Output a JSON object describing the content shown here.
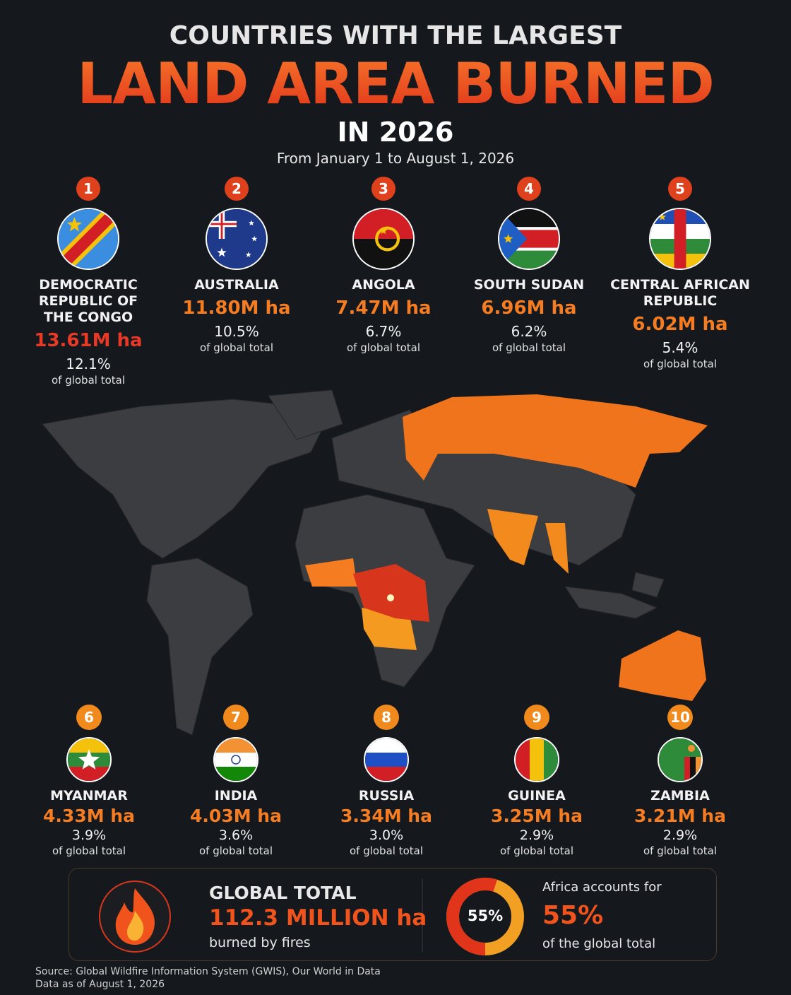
{
  "header": {
    "title_top": "COUNTRIES WITH THE LARGEST",
    "title_main": "LAND AREA BURNED",
    "title_year": "IN 2026",
    "subtitle": "From January 1 to August 1, 2026"
  },
  "countries": [
    {
      "rank": "1",
      "name": "DEMOCRATIC REPUBLIC OF THE CONGO",
      "area": "13.61M ha",
      "share": "12.1%",
      "share_note": "of global total"
    },
    {
      "rank": "2",
      "name": "AUSTRALIA",
      "area": "11.80M ha",
      "share": "10.5%",
      "share_note": "of global total"
    },
    {
      "rank": "3",
      "name": "ANGOLA",
      "area": "7.47M ha",
      "share": "6.7%",
      "share_note": "of global total"
    },
    {
      "rank": "4",
      "name": "SOUTH SUDAN",
      "area": "6.96M ha",
      "share": "6.2%",
      "share_note": "of global total"
    },
    {
      "rank": "5",
      "name": "CENTRAL AFRICAN REPUBLIC",
      "area": "6.02M ha",
      "share": "5.4%",
      "share_note": "of global total"
    },
    {
      "rank": "6",
      "name": "MYANMAR",
      "area": "4.33M ha",
      "share": "3.9%",
      "share_note": "of global total"
    },
    {
      "rank": "7",
      "name": "INDIA",
      "area": "4.03M ha",
      "share": "3.6%",
      "share_note": "of global total"
    },
    {
      "rank": "8",
      "name": "RUSSIA",
      "area": "3.34M ha",
      "share": "3.0%",
      "share_note": "of global total"
    },
    {
      "rank": "9",
      "name": "GUINEA",
      "area": "3.25M ha",
      "share": "2.9%",
      "share_note": "of global total"
    },
    {
      "rank": "10",
      "name": "ZAMBIA",
      "area": "3.21M ha",
      "share": "2.9%",
      "share_note": "of global total"
    }
  ],
  "summary": {
    "label": "GLOBAL TOTAL",
    "total": "112.3 MILLION ha",
    "note": "burned by fires",
    "donut_label": "55%",
    "share_value": 55,
    "africa_intro": "Africa accounts for",
    "africa_share": "55%",
    "africa_note": "of the global total"
  },
  "source": [
    "Source: Global Wildfire Information System (GWIS), Our World in Data",
    "Data as of August 1, 2026"
  ]
}
